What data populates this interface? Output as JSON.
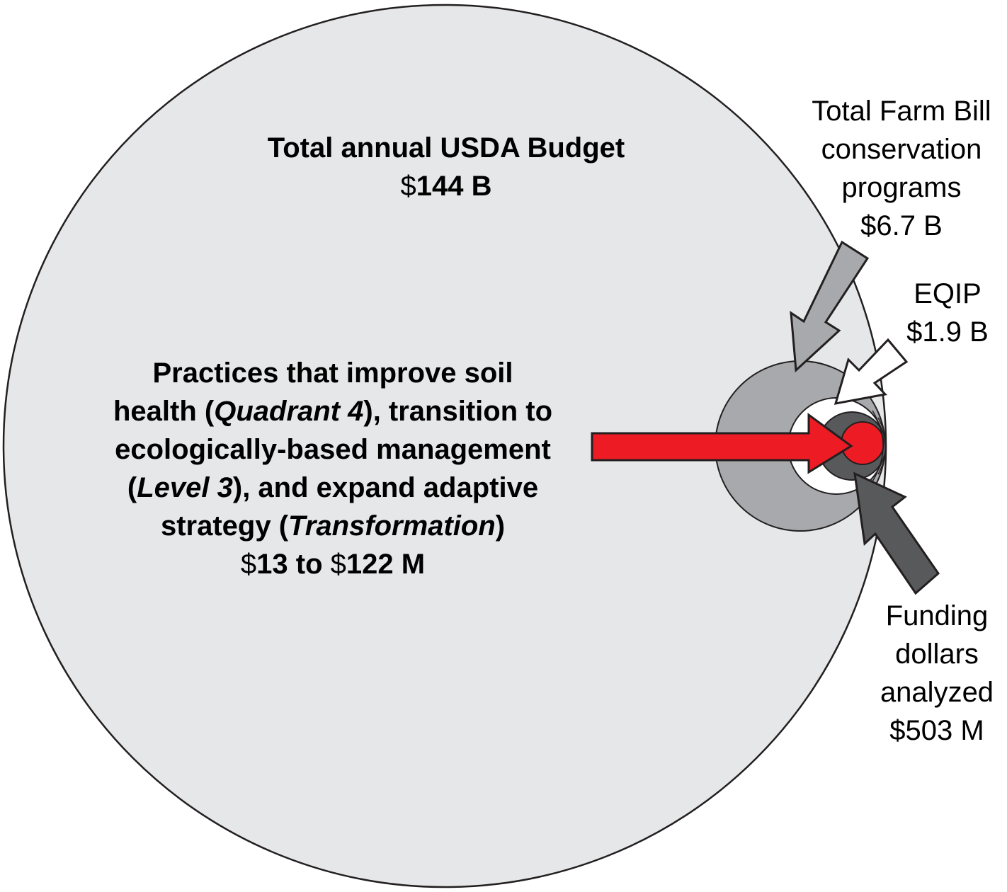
{
  "colors": {
    "usda_fill": "#e6e7e8",
    "farm_bill_fill": "#a7a9ac",
    "eqip_fill": "#ffffff",
    "analyzed_fill": "#58595b",
    "practices_fill": "#ed1c24",
    "outline": "#231f20"
  },
  "usda": {
    "title": "Total annual USDA Budget",
    "currency": "$",
    "amount": "144 B"
  },
  "farm_bill": {
    "line1": "Total Farm Bill",
    "line2": "conservation",
    "line3": "programs",
    "amount": "$6.7 B"
  },
  "eqip": {
    "name": "EQIP",
    "amount": "$1.9 B"
  },
  "practices": {
    "line1": "Practices that improve soil",
    "line2_pre": "health (",
    "line2_it": "Quadrant 4",
    "line2_post": "), transition to",
    "line3": "ecologically-based management",
    "line4_pre": "(",
    "line4_it": "Level 3",
    "line4_post": "), and expand adaptive",
    "line5_pre": "strategy (",
    "line5_it": "Transformation",
    "line5_post": ")",
    "amt_c1": "$",
    "amt_v1": "13 to ",
    "amt_c2": "$",
    "amt_v2": "122 M"
  },
  "analyzed": {
    "line1": "Funding",
    "line2": "dollars",
    "line3": "analyzed",
    "amount": "$503 M"
  }
}
